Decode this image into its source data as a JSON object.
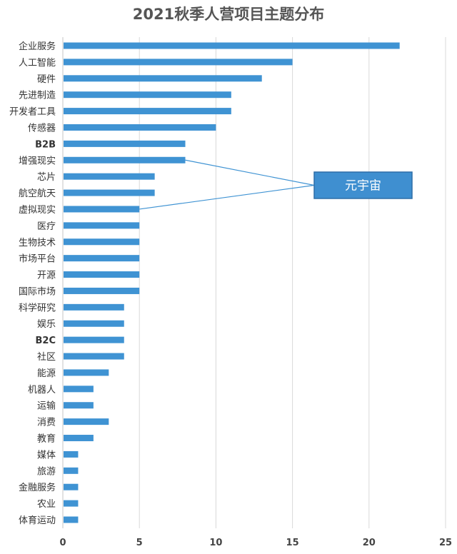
{
  "chart_data": {
    "type": "bar",
    "orientation": "horizontal",
    "title": "2021秋季人营项目主题分布",
    "categories": [
      "企业服务",
      "人工智能",
      "硬件",
      "先进制造",
      "开发者工具",
      "传感器",
      "B2B",
      "增强现实",
      "芯片",
      "航空航天",
      "虚拟现实",
      "医疗",
      "生物技术",
      "市场平台",
      "开源",
      "国际市场",
      "科学研究",
      "娱乐",
      "B2C",
      "社区",
      "能源",
      "机器人",
      "运输",
      "消费",
      "教育",
      "媒体",
      "旅游",
      "金融服务",
      "农业",
      "体育运动"
    ],
    "values": [
      22,
      15,
      13,
      11,
      11,
      10,
      8,
      8,
      6,
      6,
      5,
      5,
      5,
      5,
      5,
      5,
      4,
      4,
      4,
      4,
      3,
      2,
      2,
      3,
      2,
      1,
      1,
      1,
      1,
      1
    ],
    "xlim": [
      0,
      25
    ],
    "xticks": [
      0,
      5,
      10,
      15,
      20,
      25
    ],
    "grid": true,
    "bar_color": "#3f93d3",
    "grid_color": "#d9d9d9",
    "annotation": {
      "text": "元宇宙",
      "targets": [
        "增强现实",
        "虚拟现实"
      ],
      "fill": "#3f8fd0",
      "border": "#2f6fa8"
    }
  }
}
